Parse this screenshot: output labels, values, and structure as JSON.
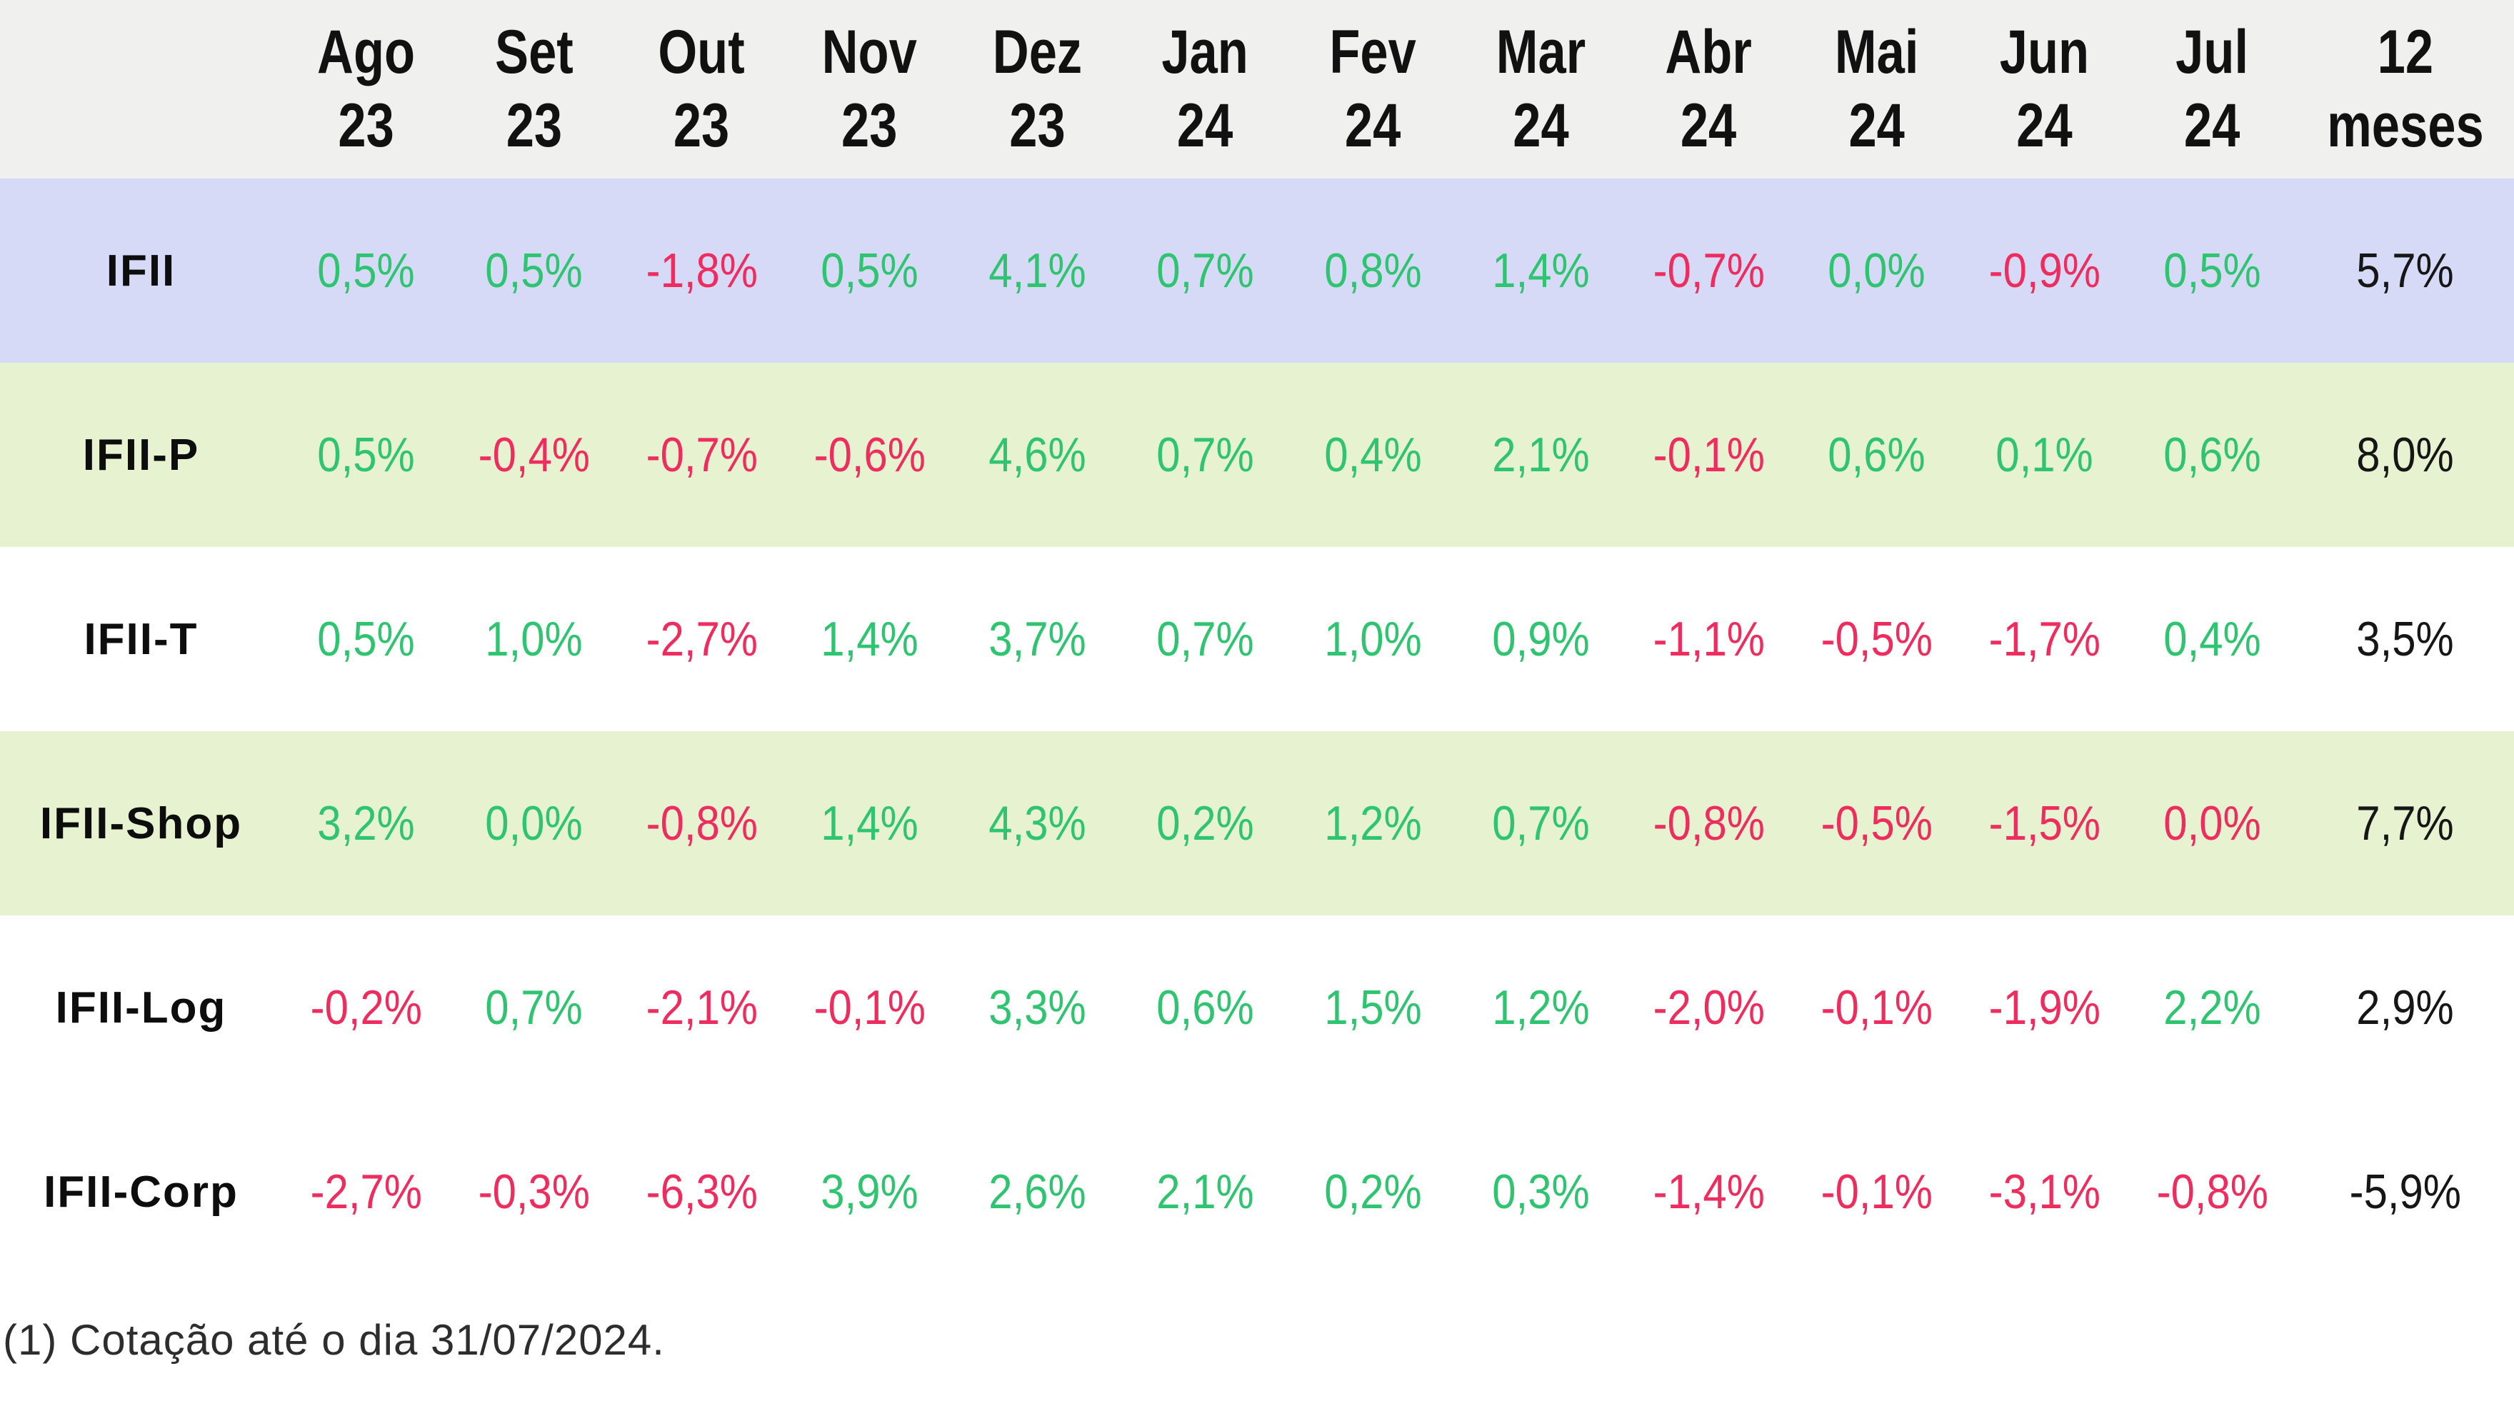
{
  "chart_data": {
    "type": "table",
    "columns": [
      {
        "line1": "Ago",
        "line2": "23"
      },
      {
        "line1": "Set",
        "line2": "23"
      },
      {
        "line1": "Out",
        "line2": "23"
      },
      {
        "line1": "Nov",
        "line2": "23"
      },
      {
        "line1": "Dez",
        "line2": "23"
      },
      {
        "line1": "Jan",
        "line2": "24"
      },
      {
        "line1": "Fev",
        "line2": "24"
      },
      {
        "line1": "Mar",
        "line2": "24"
      },
      {
        "line1": "Abr",
        "line2": "24"
      },
      {
        "line1": "Mai",
        "line2": "24"
      },
      {
        "line1": "Jun",
        "line2": "24"
      },
      {
        "line1": "Jul",
        "line2": "24"
      },
      {
        "line1": "12",
        "line2": "meses"
      }
    ],
    "rows": [
      {
        "label": "IFII",
        "bg": "lavender",
        "values": [
          "0,5%",
          "0,5%",
          "-1,8%",
          "0,5%",
          "4,1%",
          "0,7%",
          "0,8%",
          "1,4%",
          "-0,7%",
          "0,0%",
          "-0,9%",
          "0,5%"
        ],
        "tones": [
          "pos",
          "pos",
          "neg",
          "pos",
          "pos",
          "pos",
          "pos",
          "pos",
          "neg",
          "pos",
          "neg",
          "pos"
        ],
        "total": "5,7%"
      },
      {
        "label": "IFII-P",
        "bg": "green",
        "values": [
          "0,5%",
          "-0,4%",
          "-0,7%",
          "-0,6%",
          "4,6%",
          "0,7%",
          "0,4%",
          "2,1%",
          "-0,1%",
          "0,6%",
          "0,1%",
          "0,6%"
        ],
        "tones": [
          "pos",
          "neg",
          "neg",
          "neg",
          "pos",
          "pos",
          "pos",
          "pos",
          "neg",
          "pos",
          "pos",
          "pos"
        ],
        "total": "8,0%"
      },
      {
        "label": "IFII-T",
        "bg": "white",
        "values": [
          "0,5%",
          "1,0%",
          "-2,7%",
          "1,4%",
          "3,7%",
          "0,7%",
          "1,0%",
          "0,9%",
          "-1,1%",
          "-0,5%",
          "-1,7%",
          "0,4%"
        ],
        "tones": [
          "pos",
          "pos",
          "neg",
          "pos",
          "pos",
          "pos",
          "pos",
          "pos",
          "neg",
          "neg",
          "neg",
          "pos"
        ],
        "total": "3,5%"
      },
      {
        "label": "IFII-Shop",
        "bg": "green",
        "values": [
          "3,2%",
          "0,0%",
          "-0,8%",
          "1,4%",
          "4,3%",
          "0,2%",
          "1,2%",
          "0,7%",
          "-0,8%",
          "-0,5%",
          "-1,5%",
          "0,0%"
        ],
        "tones": [
          "pos",
          "pos",
          "neg",
          "pos",
          "pos",
          "pos",
          "pos",
          "pos",
          "neg",
          "neg",
          "neg",
          "neg"
        ],
        "total": "7,7%"
      },
      {
        "label": "IFII-Log",
        "bg": "white",
        "values": [
          "-0,2%",
          "0,7%",
          "-2,1%",
          "-0,1%",
          "3,3%",
          "0,6%",
          "1,5%",
          "1,2%",
          "-2,0%",
          "-0,1%",
          "-1,9%",
          "2,2%"
        ],
        "tones": [
          "neg",
          "pos",
          "neg",
          "neg",
          "pos",
          "pos",
          "pos",
          "pos",
          "neg",
          "neg",
          "neg",
          "pos"
        ],
        "total": "2,9%"
      },
      {
        "label": "IFII-Corp",
        "bg": "white",
        "values": [
          "-2,7%",
          "-0,3%",
          "-6,3%",
          "3,9%",
          "2,6%",
          "2,1%",
          "0,2%",
          "0,3%",
          "-1,4%",
          "-0,1%",
          "-3,1%",
          "-0,8%"
        ],
        "tones": [
          "neg",
          "neg",
          "neg",
          "pos",
          "pos",
          "pos",
          "pos",
          "pos",
          "neg",
          "neg",
          "neg",
          "neg"
        ],
        "total": "-5,9%"
      }
    ],
    "footnote": "(1) Cotação até o dia 31/07/2024.",
    "layout": {
      "grid": false,
      "legend": "none"
    }
  },
  "colors": {
    "positive_text": "#2fc470",
    "negative_text": "#ef2c5e",
    "total_text": "#161616",
    "header_bg": "#f0f0ef",
    "row_lavender_bg": "#d7daf7",
    "row_green_bg": "#e6f2d0",
    "row_white_bg": "#ffffff"
  }
}
